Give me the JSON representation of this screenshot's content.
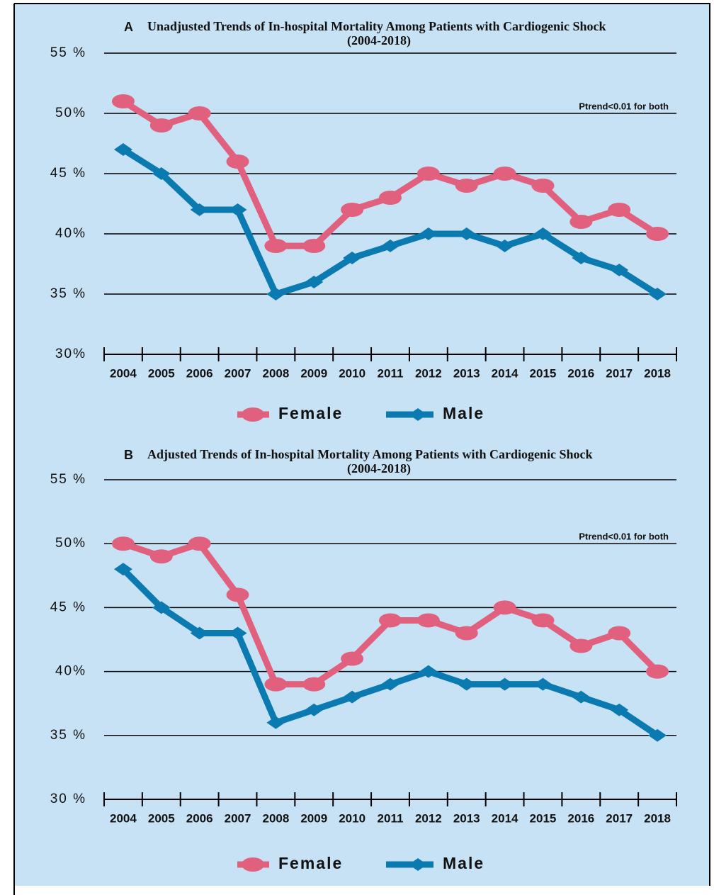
{
  "chart_data": [
    {
      "type": "line",
      "panel_label": "A",
      "title": "Unadjusted Trends of In-hospital Mortality Among Patients with Cardiogenic Shock",
      "subtitle": "(2004-2018)",
      "annotation": "Ptrend<0.01 for both",
      "categories": [
        "2004",
        "2005",
        "2006",
        "2007",
        "2008",
        "2009",
        "2010",
        "2011",
        "2012",
        "2013",
        "2014",
        "2015",
        "2016",
        "2017",
        "2018"
      ],
      "series": [
        {
          "name": "Female",
          "color": "#e0607e",
          "marker": "ellipse",
          "values": [
            51,
            49,
            50,
            46,
            39,
            39,
            42,
            43,
            45,
            44,
            45,
            44,
            41,
            42,
            40
          ]
        },
        {
          "name": "Male",
          "color": "#0a7ab0",
          "marker": "diamond",
          "values": [
            47,
            45,
            42,
            42,
            35,
            36,
            38,
            39,
            40,
            40,
            39,
            40,
            38,
            37,
            35
          ]
        }
      ],
      "ylim": [
        30,
        55
      ],
      "yticks": [
        {
          "value": 30,
          "label": "30%"
        },
        {
          "value": 35,
          "label": "35 %"
        },
        {
          "value": 40,
          "label": "40%"
        },
        {
          "value": 45,
          "label": "45 %"
        },
        {
          "value": 50,
          "label": "50%"
        },
        {
          "value": 55,
          "label": "55 %"
        }
      ],
      "grid": true
    },
    {
      "type": "line",
      "panel_label": "B",
      "title": "Adjusted Trends of In-hospital Mortality Among Patients with Cardiogenic Shock",
      "subtitle": "(2004-2018)",
      "annotation": "Ptrend<0.01 for both",
      "categories": [
        "2004",
        "2005",
        "2006",
        "2007",
        "2008",
        "2009",
        "2010",
        "2011",
        "2012",
        "2013",
        "2014",
        "2015",
        "2016",
        "2017",
        "2018"
      ],
      "series": [
        {
          "name": "Female",
          "color": "#e0607e",
          "marker": "ellipse",
          "values": [
            50,
            49,
            50,
            46,
            39,
            39,
            41,
            44,
            44,
            43,
            45,
            44,
            42,
            43,
            40
          ]
        },
        {
          "name": "Male",
          "color": "#0a7ab0",
          "marker": "diamond",
          "values": [
            48,
            45,
            43,
            43,
            36,
            37,
            38,
            39,
            40,
            39,
            39,
            39,
            38,
            37,
            35
          ]
        }
      ],
      "ylim": [
        30,
        55
      ],
      "yticks": [
        {
          "value": 30,
          "label": "30 %"
        },
        {
          "value": 35,
          "label": "35 %"
        },
        {
          "value": 40,
          "label": "40%"
        },
        {
          "value": 45,
          "label": "45 %"
        },
        {
          "value": 50,
          "label": "50%"
        },
        {
          "value": 55,
          "label": "55 %"
        }
      ],
      "grid": true
    }
  ]
}
